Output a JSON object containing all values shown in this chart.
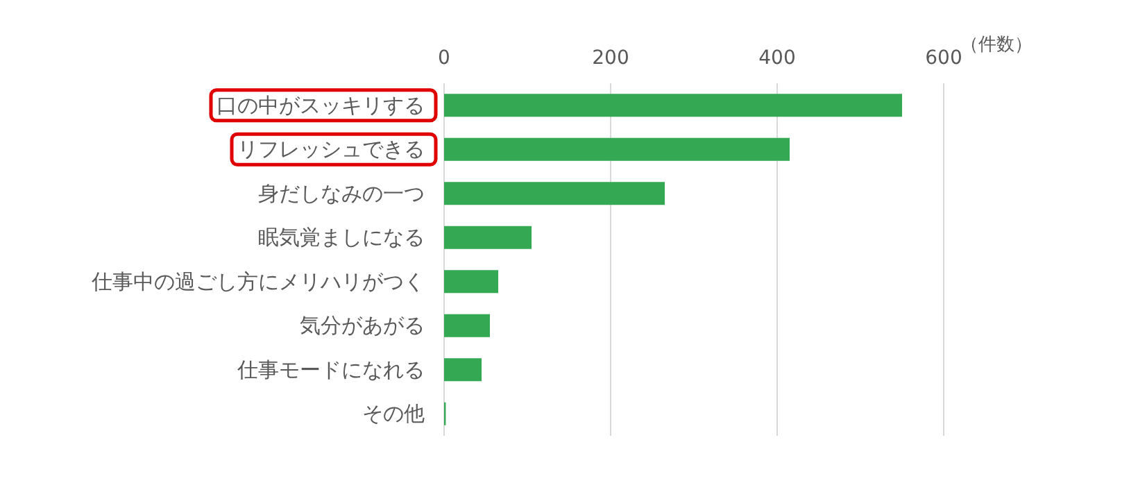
{
  "chart_data": {
    "type": "bar",
    "orientation": "horizontal",
    "xlabel": "（件数）",
    "categories": [
      "口の中がスッキリする",
      "リフレッシュできる",
      "身だしなみの一つ",
      "眠気覚ましになる",
      "仕事中の過ごし方にメリハリがつく",
      "気分があがる",
      "仕事モードになれる",
      "その他"
    ],
    "values": [
      550,
      415,
      265,
      105,
      65,
      55,
      45,
      2
    ],
    "color": "#35a853",
    "xlim": [
      0,
      600
    ],
    "xticks": [
      0,
      200,
      400,
      600
    ],
    "grid": "x"
  }
}
